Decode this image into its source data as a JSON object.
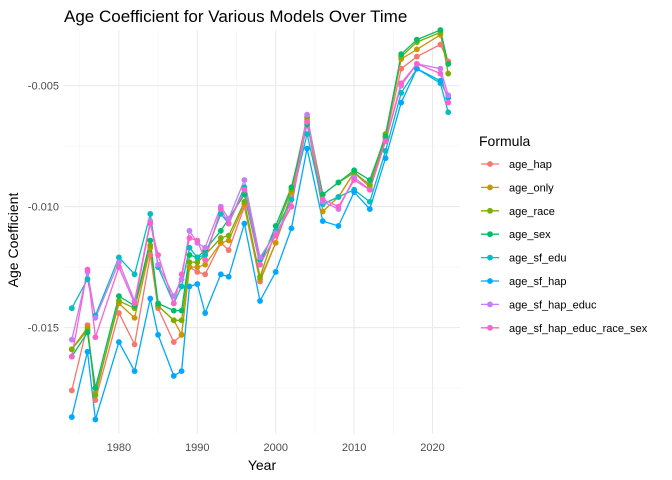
{
  "chart_data": {
    "type": "line",
    "title": "Age Coefficient for Various Models Over Time",
    "xlabel": "Year",
    "ylabel": "Age Coefficient",
    "xlim": [
      1973,
      2023.5
    ],
    "ylim": [
      -0.0194,
      -0.0027
    ],
    "xticks": [
      1980,
      1990,
      2000,
      2010,
      2020
    ],
    "yticks": [
      -0.015,
      -0.01,
      -0.005
    ],
    "xtick_labels": [
      "1980",
      "1990",
      "2000",
      "2010",
      "2020"
    ],
    "ytick_labels": [
      "-0.015",
      "-0.010",
      "-0.005"
    ],
    "grid": true,
    "legend_title": "Formula",
    "legend_position": "right",
    "x": [
      1974,
      1976,
      1977,
      1980,
      1982,
      1984,
      1985,
      1987,
      1988,
      1989,
      1990,
      1991,
      1993,
      1994,
      1996,
      1998,
      2000,
      2002,
      2004,
      2006,
      2008,
      2010,
      2012,
      2014,
      2016,
      2018,
      2021,
      2022
    ],
    "series": [
      {
        "name": "age_hap",
        "color": "#F8766D",
        "values": [
          -0.0176,
          -0.0149,
          -0.018,
          -0.0144,
          -0.0157,
          -0.012,
          -0.0142,
          -0.0156,
          -0.0153,
          -0.0125,
          -0.0127,
          -0.0128,
          -0.0115,
          -0.0118,
          -0.01,
          -0.0131,
          -0.0115,
          -0.0097,
          -0.0065,
          -0.0099,
          -0.0096,
          -0.0086,
          -0.0092,
          -0.0072,
          -0.0043,
          -0.0038,
          -0.0033,
          -0.004
        ]
      },
      {
        "name": "age_only",
        "color": "#CD9600",
        "values": [
          -0.0159,
          -0.015,
          -0.0177,
          -0.014,
          -0.0146,
          -0.0117,
          -0.0141,
          -0.0147,
          -0.0153,
          -0.0125,
          -0.0125,
          -0.0124,
          -0.0115,
          -0.0114,
          -0.0099,
          -0.013,
          -0.0115,
          -0.0094,
          -0.0064,
          -0.0102,
          -0.0096,
          -0.0086,
          -0.0091,
          -0.0071,
          -0.0039,
          -0.0035,
          -0.0029,
          -0.0041
        ]
      },
      {
        "name": "age_race",
        "color": "#7CAE00",
        "values": [
          -0.0159,
          -0.0151,
          -0.0178,
          -0.0139,
          -0.0142,
          -0.0116,
          -0.0141,
          -0.0147,
          -0.0147,
          -0.0123,
          -0.0123,
          -0.012,
          -0.0113,
          -0.0112,
          -0.0098,
          -0.0129,
          -0.011,
          -0.0093,
          -0.0063,
          -0.0095,
          -0.009,
          -0.0086,
          -0.0091,
          -0.007,
          -0.0038,
          -0.0032,
          -0.0028,
          -0.0045
        ]
      },
      {
        "name": "age_sex",
        "color": "#00BE67",
        "values": [
          -0.0162,
          -0.0152,
          -0.0175,
          -0.0137,
          -0.0141,
          -0.0114,
          -0.014,
          -0.0143,
          -0.0143,
          -0.012,
          -0.0121,
          -0.0118,
          -0.011,
          -0.0105,
          -0.0095,
          -0.0124,
          -0.0108,
          -0.0092,
          -0.0066,
          -0.0095,
          -0.009,
          -0.0085,
          -0.0089,
          -0.0071,
          -0.0037,
          -0.0031,
          -0.0027,
          -0.0041
        ]
      },
      {
        "name": "age_sf_edu",
        "color": "#00BFC4",
        "values": [
          -0.0142,
          -0.013,
          -0.0145,
          -0.0121,
          -0.0128,
          -0.0103,
          -0.0125,
          -0.014,
          -0.0133,
          -0.0117,
          -0.0121,
          -0.012,
          -0.0103,
          -0.0107,
          -0.0092,
          -0.0122,
          -0.011,
          -0.0097,
          -0.007,
          -0.0099,
          -0.0096,
          -0.0093,
          -0.0098,
          -0.0077,
          -0.0053,
          -0.0043,
          -0.0049,
          -0.0061
        ]
      },
      {
        "name": "age_sf_hap",
        "color": "#00A9FF",
        "values": [
          -0.0187,
          -0.016,
          -0.0188,
          -0.0156,
          -0.0168,
          -0.0138,
          -0.0153,
          -0.017,
          -0.0168,
          -0.0133,
          -0.0132,
          -0.0144,
          -0.0128,
          -0.0129,
          -0.0107,
          -0.0139,
          -0.0127,
          -0.0109,
          -0.0076,
          -0.0106,
          -0.0108,
          -0.0094,
          -0.0101,
          -0.008,
          -0.0057,
          -0.0043,
          -0.0048,
          -0.0055
        ]
      },
      {
        "name": "age_sf_hap_educ",
        "color": "#C77CFF",
        "values": [
          -0.0155,
          -0.0127,
          -0.0146,
          -0.0123,
          -0.0139,
          -0.0106,
          -0.0124,
          -0.0137,
          -0.013,
          -0.011,
          -0.0115,
          -0.0117,
          -0.01,
          -0.0105,
          -0.0089,
          -0.0121,
          -0.0111,
          -0.01,
          -0.0062,
          -0.0098,
          -0.0101,
          -0.0088,
          -0.0093,
          -0.0073,
          -0.005,
          -0.0041,
          -0.0043,
          -0.0054
        ]
      },
      {
        "name": "age_sf_hap_educ_race_sex",
        "color": "#FF61CC",
        "values": [
          -0.0162,
          -0.0126,
          -0.0154,
          -0.0125,
          -0.014,
          -0.0107,
          -0.012,
          -0.014,
          -0.0128,
          -0.0113,
          -0.0114,
          -0.0122,
          -0.0101,
          -0.0107,
          -0.0093,
          -0.0124,
          -0.0112,
          -0.01,
          -0.0065,
          -0.0097,
          -0.01,
          -0.0089,
          -0.0093,
          -0.0073,
          -0.0049,
          -0.0041,
          -0.0045,
          -0.0057
        ]
      }
    ]
  }
}
